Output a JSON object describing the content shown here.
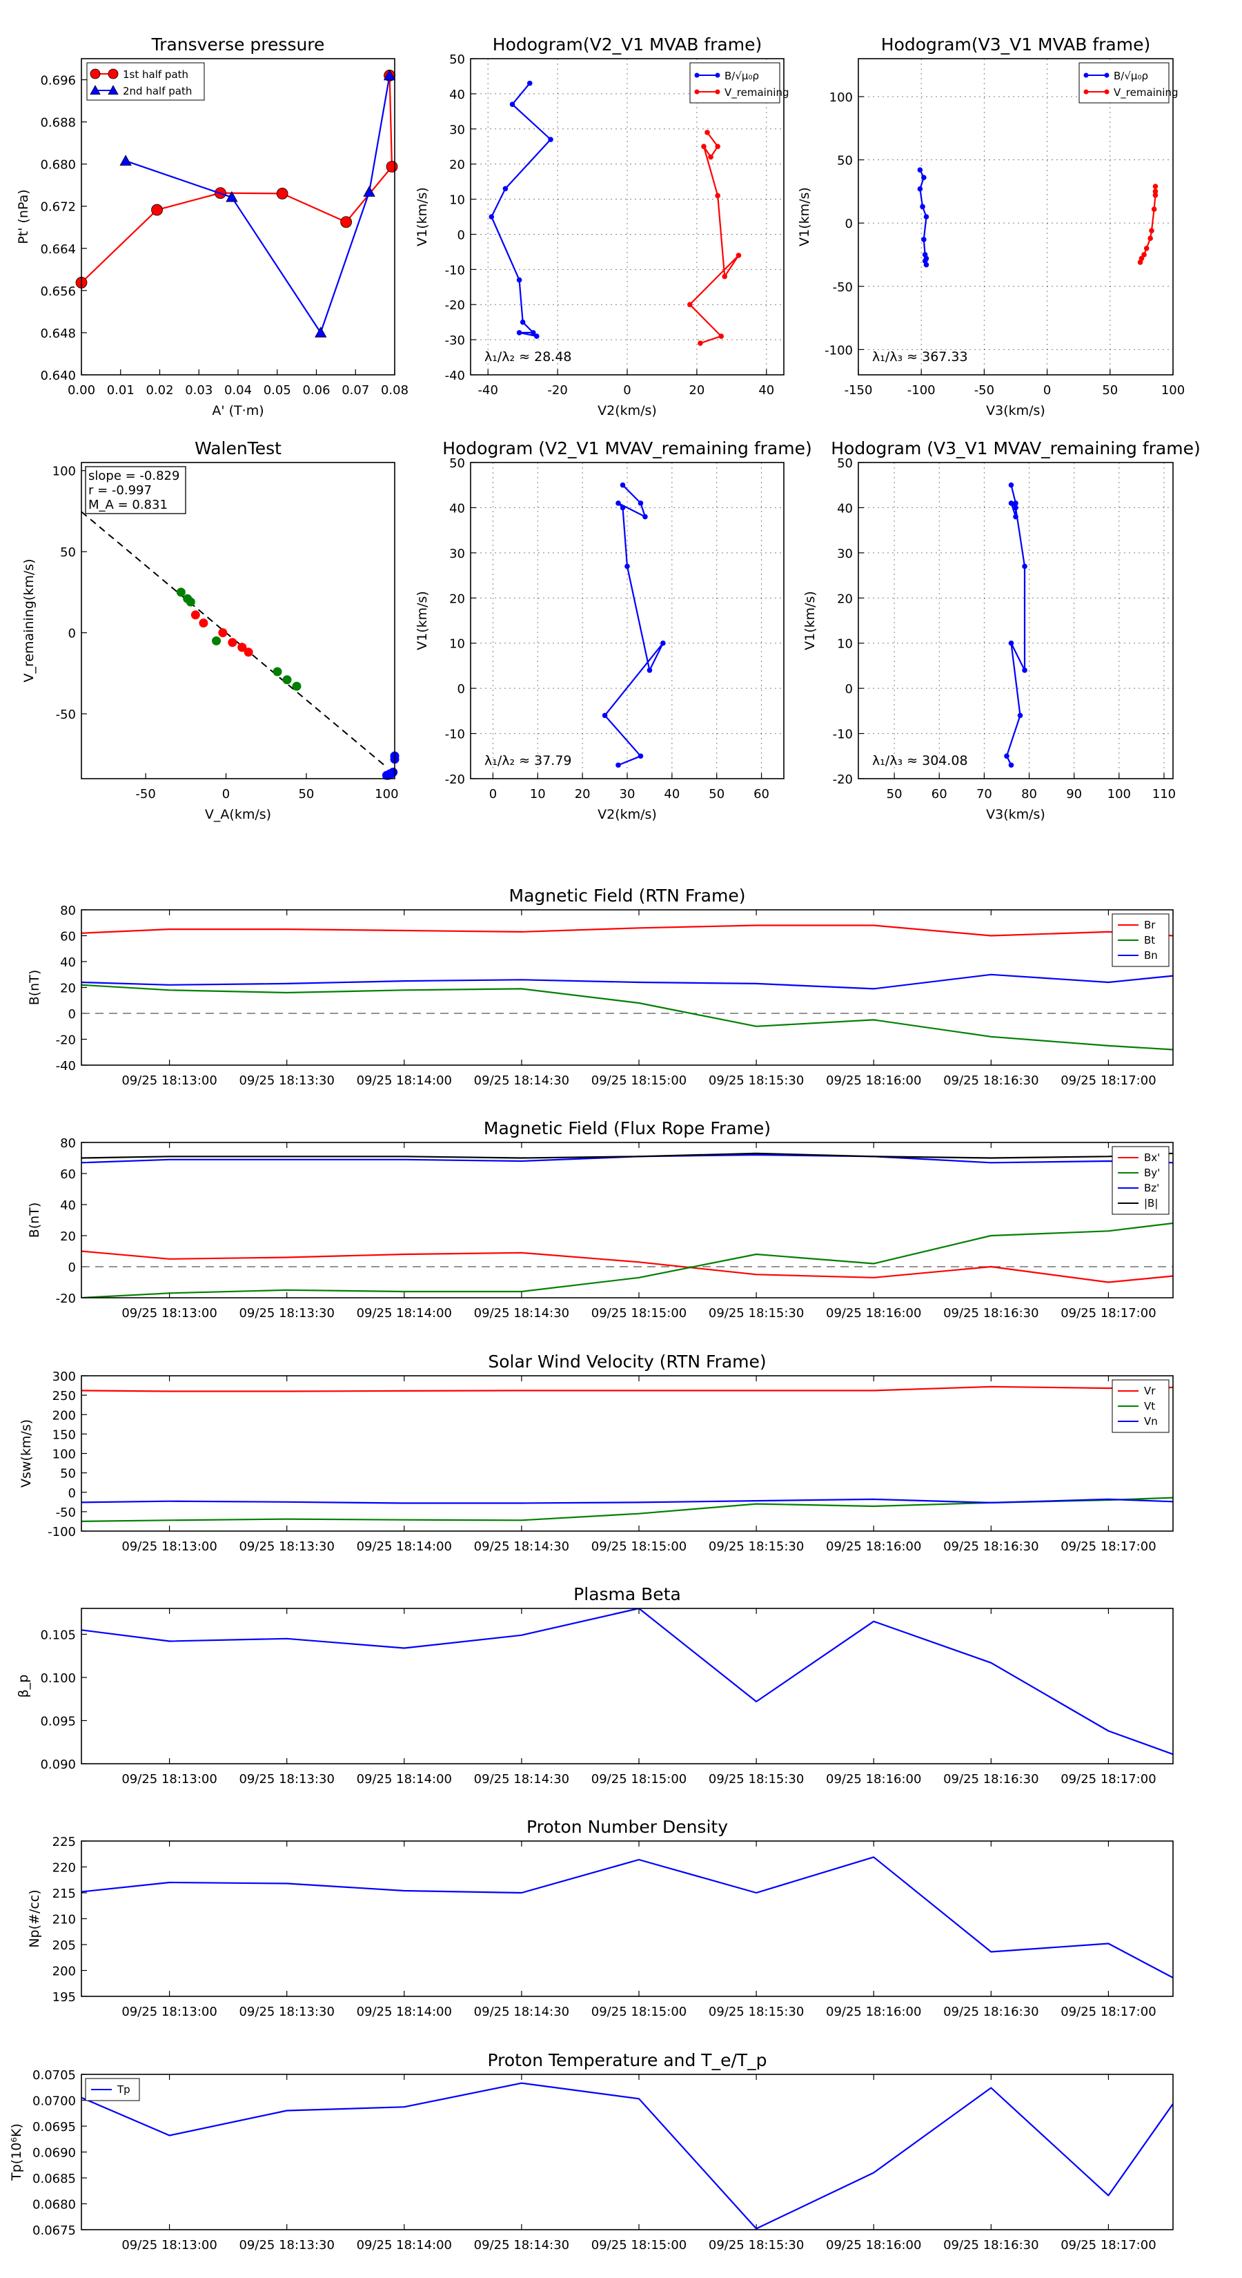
{
  "chart_data": [
    {
      "id": "tp",
      "type": "line",
      "title": "Transverse pressure",
      "xlabel": "A' (T·m)",
      "ylabel": "Pt' (nPa)",
      "xlim": [
        0,
        0.08
      ],
      "ylim": [
        0.64,
        0.7
      ],
      "xticks": [
        0,
        0.01,
        0.02,
        0.03,
        0.04,
        0.05,
        0.06,
        0.07,
        0.08
      ],
      "xticklabels": [
        "0.00",
        "0.01",
        "0.02",
        "0.03",
        "0.04",
        "0.05",
        "0.06",
        "0.07",
        "0.08"
      ],
      "yticks": [
        0.64,
        0.648,
        0.656,
        0.664,
        0.672,
        0.68,
        0.688,
        0.696
      ],
      "yticklabels": [
        "0.640",
        "0.648",
        "0.656",
        "0.664",
        "0.672",
        "0.680",
        "0.688",
        "0.696"
      ],
      "legend_position": "top-left",
      "series": [
        {
          "name": "1st half path",
          "color": "#ff0000",
          "marker": "circle",
          "x": [
            0.0,
            0.0193,
            0.0355,
            0.0513,
            0.0676,
            0.0793,
            0.0787
          ],
          "y": [
            0.6575,
            0.6713,
            0.6745,
            0.6744,
            0.669,
            0.6795,
            0.6968
          ]
        },
        {
          "name": "2nd half path",
          "color": "#0000ff",
          "marker": "triangle",
          "x": [
            0.0787,
            0.0735,
            0.0611,
            0.0384,
            0.0113
          ],
          "y": [
            0.6968,
            0.6747,
            0.648,
            0.6737,
            0.6806
          ]
        }
      ]
    },
    {
      "id": "hv2b",
      "type": "line",
      "title": "Hodogram(V2_V1 MVAB frame)",
      "xlabel": "V2(km/s)",
      "ylabel": "V1(km/s)",
      "xlim": [
        -45,
        45
      ],
      "ylim": [
        -40,
        50
      ],
      "xticks": [
        -40,
        -20,
        0,
        20,
        40
      ],
      "yticks": [
        -40,
        -30,
        -20,
        -10,
        0,
        10,
        20,
        30,
        40,
        50
      ],
      "annotation": "λ₁/λ₂ ≈ 28.48",
      "legend_position": "top-right",
      "series": [
        {
          "name": "B/√μ₀ρ",
          "color": "#0000ff",
          "x": [
            -28,
            -33,
            -22,
            -35,
            -39,
            -31,
            -30,
            -27,
            -31,
            -26
          ],
          "y": [
            43,
            37,
            27,
            13,
            5,
            -13,
            -25,
            -28,
            -28,
            -29
          ]
        },
        {
          "name": "V_remaining",
          "color": "#ff0000",
          "x": [
            23,
            26,
            24,
            22,
            26,
            28,
            32,
            18,
            27,
            21
          ],
          "y": [
            29,
            25,
            22,
            25,
            11,
            -12,
            -6,
            -20,
            -29,
            -31
          ]
        }
      ]
    },
    {
      "id": "hv3b",
      "type": "line",
      "title": "Hodogram(V3_V1 MVAB frame)",
      "xlabel": "V3(km/s)",
      "ylabel": "V1(km/s)",
      "xlim": [
        -150,
        100
      ],
      "ylim": [
        -120,
        130
      ],
      "xticks": [
        -150,
        -100,
        -50,
        0,
        50,
        100
      ],
      "yticks": [
        -100,
        -50,
        0,
        50,
        100
      ],
      "annotation": "λ₁/λ₃ ≈ 367.33",
      "legend_position": "top-right",
      "series": [
        {
          "name": "B/√μ₀ρ",
          "color": "#0000ff",
          "x": [
            -101,
            -98,
            -101,
            -99,
            -96,
            -98,
            -97,
            -96,
            -97,
            -96
          ],
          "y": [
            42,
            36,
            27,
            13,
            5,
            -13,
            -25,
            -28,
            -30,
            -33
          ]
        },
        {
          "name": "V_remaining",
          "color": "#ff0000",
          "x": [
            86,
            86,
            86,
            85,
            83,
            82,
            79,
            77,
            75,
            74
          ],
          "y": [
            29,
            25,
            22,
            11,
            -6,
            -12,
            -20,
            -25,
            -28,
            -31
          ]
        }
      ]
    },
    {
      "id": "walen",
      "type": "scatter",
      "title": "WalenTest",
      "xlabel": "V_A(km/s)",
      "ylabel": "V_remaining(km/s)",
      "xlim": [
        -90,
        105
      ],
      "ylim": [
        -90,
        105
      ],
      "xticks": [
        -50,
        0,
        50,
        100
      ],
      "yticks": [
        -50,
        0,
        50,
        100
      ],
      "stats": [
        "slope = -0.829",
        "r = -0.997",
        "M_A = 0.831"
      ],
      "fit": {
        "slope": -0.829,
        "intercept": 0
      },
      "series": [
        {
          "name": "green",
          "color": "#008000",
          "x": [
            -28,
            -24,
            -22,
            -6,
            10,
            32,
            38,
            44
          ],
          "y": [
            25,
            21,
            19,
            -5,
            -9,
            -24,
            -29,
            -33
          ]
        },
        {
          "name": "red",
          "color": "#ff0000",
          "x": [
            -19,
            -14,
            -2,
            4,
            10,
            14
          ],
          "y": [
            11,
            6,
            0,
            -6,
            -9,
            -12
          ]
        },
        {
          "name": "blue",
          "color": "#0000ff",
          "x": [
            100,
            101,
            102,
            103,
            104,
            105,
            105
          ],
          "y": [
            -88,
            -88,
            -87,
            -87,
            -86,
            -78,
            -76
          ]
        }
      ]
    },
    {
      "id": "hv2r",
      "type": "line",
      "title": "Hodogram (V2_V1 MVAV_remaining frame)",
      "xlabel": "V2(km/s)",
      "ylabel": "V1(km/s)",
      "xlim": [
        -5,
        65
      ],
      "ylim": [
        -20,
        50
      ],
      "xticks": [
        0,
        10,
        20,
        30,
        40,
        50,
        60
      ],
      "yticks": [
        -20,
        -10,
        0,
        10,
        20,
        30,
        40,
        50
      ],
      "annotation": "λ₁/λ₂ ≈ 37.79",
      "series": [
        {
          "name": "hodogram",
          "color": "#0000ff",
          "x": [
            29,
            33,
            34,
            28,
            29,
            30,
            35,
            38,
            25,
            33,
            28
          ],
          "y": [
            45,
            41,
            38,
            41,
            40,
            27,
            4,
            10,
            -6,
            -15,
            -17
          ]
        }
      ]
    },
    {
      "id": "hv3r",
      "type": "line",
      "title": "Hodogram (V3_V1 MVAV_remaining frame)",
      "xlabel": "V3(km/s)",
      "ylabel": "V1(km/s)",
      "xlim": [
        42,
        112
      ],
      "ylim": [
        -20,
        50
      ],
      "xticks": [
        50,
        60,
        70,
        80,
        90,
        100,
        110
      ],
      "yticks": [
        -20,
        -10,
        0,
        10,
        20,
        30,
        40,
        50
      ],
      "annotation": "λ₁/λ₃ ≈ 304.08",
      "series": [
        {
          "name": "hodogram",
          "color": "#0000ff",
          "x": [
            76,
            77,
            77,
            76,
            77,
            79,
            79,
            76,
            78,
            75,
            76
          ],
          "y": [
            45,
            41,
            38,
            41,
            40,
            27,
            4,
            10,
            -6,
            -15,
            -17
          ]
        }
      ]
    },
    {
      "id": "mag_rtn",
      "type": "line",
      "title": "Magnetic Field (RTN Frame)",
      "ylabel": "B(nT)",
      "ylim": [
        -40,
        80
      ],
      "yticks": [
        -40,
        -20,
        0,
        20,
        40,
        60,
        80
      ],
      "zero_line": true,
      "legend_position": "top-right",
      "x": [
        0,
        1,
        2,
        3,
        4,
        5,
        6,
        7,
        8,
        9,
        10
      ],
      "xticklabels": [
        "09/25 18:13:00",
        "09/25 18:13:30",
        "09/25 18:14:00",
        "09/25 18:14:30",
        "09/25 18:15:00",
        "09/25 18:15:30",
        "09/25 18:16:00",
        "09/25 18:16:30",
        "09/25 18:17:00"
      ],
      "series": [
        {
          "name": "Br",
          "color": "#ff0000",
          "values": [
            62,
            65,
            65,
            64,
            63,
            66,
            68,
            68,
            60,
            63,
            60
          ]
        },
        {
          "name": "Bt",
          "color": "#008000",
          "values": [
            22,
            18,
            16,
            18,
            19,
            8,
            -10,
            -5,
            -18,
            -25,
            -28
          ]
        },
        {
          "name": "Bn",
          "color": "#0000ff",
          "values": [
            24,
            22,
            23,
            25,
            26,
            24,
            23,
            19,
            30,
            24,
            29
          ]
        }
      ]
    },
    {
      "id": "mag_fr",
      "type": "line",
      "title": "Magnetic Field (Flux Rope Frame)",
      "ylabel": "B(nT)",
      "ylim": [
        -20,
        80
      ],
      "yticks": [
        -20,
        0,
        20,
        40,
        60,
        80
      ],
      "zero_line": true,
      "legend_position": "top-right",
      "x": [
        0,
        1,
        2,
        3,
        4,
        5,
        6,
        7,
        8,
        9,
        10
      ],
      "xticklabels": [
        "09/25 18:13:00",
        "09/25 18:13:30",
        "09/25 18:14:00",
        "09/25 18:14:30",
        "09/25 18:15:00",
        "09/25 18:15:30",
        "09/25 18:16:00",
        "09/25 18:16:30",
        "09/25 18:17:00"
      ],
      "series": [
        {
          "name": "Bx'",
          "color": "#ff0000",
          "values": [
            10,
            5,
            6,
            8,
            9,
            3,
            -5,
            -7,
            0,
            -10,
            -6
          ]
        },
        {
          "name": "By'",
          "color": "#008000",
          "values": [
            -20,
            -17,
            -15,
            -16,
            -16,
            -7,
            8,
            2,
            20,
            23,
            28
          ]
        },
        {
          "name": "Bz'",
          "color": "#0000ff",
          "values": [
            67,
            69,
            69,
            69,
            68,
            71,
            72,
            71,
            67,
            68,
            67
          ]
        },
        {
          "name": "|B|",
          "color": "#000000",
          "values": [
            70,
            71,
            71,
            71,
            70,
            71,
            73,
            71,
            70,
            71,
            73
          ]
        }
      ]
    },
    {
      "id": "vsw",
      "type": "line",
      "title": "Solar Wind Velocity (RTN Frame)",
      "ylabel": "Vsw(km/s)",
      "ylim": [
        -100,
        300
      ],
      "yticks": [
        -100,
        -50,
        0,
        50,
        100,
        150,
        200,
        250,
        300
      ],
      "legend_position": "top-right",
      "x": [
        0,
        1,
        2,
        3,
        4,
        5,
        6,
        7,
        8,
        9,
        10
      ],
      "xticklabels": [
        "09/25 18:13:00",
        "09/25 18:13:30",
        "09/25 18:14:00",
        "09/25 18:14:30",
        "09/25 18:15:00",
        "09/25 18:15:30",
        "09/25 18:16:00",
        "09/25 18:16:30",
        "09/25 18:17:00"
      ],
      "series": [
        {
          "name": "Vr",
          "color": "#ff0000",
          "values": [
            262,
            260,
            260,
            261,
            262,
            262,
            262,
            262,
            272,
            268,
            270
          ]
        },
        {
          "name": "Vt",
          "color": "#008000",
          "values": [
            -75,
            -72,
            -69,
            -71,
            -72,
            -55,
            -30,
            -36,
            -27,
            -20,
            -14
          ]
        },
        {
          "name": "Vn",
          "color": "#0000ff",
          "values": [
            -26,
            -23,
            -25,
            -28,
            -28,
            -26,
            -22,
            -18,
            -27,
            -18,
            -24
          ]
        }
      ]
    },
    {
      "id": "beta",
      "type": "line",
      "title": "Plasma Beta",
      "ylabel": "β_p",
      "ylim": [
        0.09,
        0.108
      ],
      "yticks": [
        0.09,
        0.095,
        0.1,
        0.105
      ],
      "yticklabels": [
        "0.090",
        "0.095",
        "0.100",
        "0.105"
      ],
      "x": [
        0,
        1,
        2,
        3,
        4,
        5,
        6,
        7,
        8,
        9,
        10
      ],
      "xticklabels": [
        "09/25 18:13:00",
        "09/25 18:13:30",
        "09/25 18:14:00",
        "09/25 18:14:30",
        "09/25 18:15:00",
        "09/25 18:15:30",
        "09/25 18:16:00",
        "09/25 18:16:30",
        "09/25 18:17:00"
      ],
      "series": [
        {
          "name": "beta",
          "color": "#0000ff",
          "values": [
            0.1055,
            0.1042,
            0.1045,
            0.1034,
            0.1049,
            0.108,
            0.0972,
            0.1065,
            0.1017,
            0.0938,
            0.0911
          ]
        }
      ]
    },
    {
      "id": "np",
      "type": "line",
      "title": "Proton Number Density",
      "ylabel": "Np(#/cc)",
      "ylim": [
        195,
        225
      ],
      "yticks": [
        195,
        200,
        205,
        210,
        215,
        220,
        225
      ],
      "x": [
        0,
        1,
        2,
        3,
        4,
        5,
        6,
        7,
        8,
        9,
        10
      ],
      "xticklabels": [
        "09/25 18:13:00",
        "09/25 18:13:30",
        "09/25 18:14:00",
        "09/25 18:14:30",
        "09/25 18:15:00",
        "09/25 18:15:30",
        "09/25 18:16:00",
        "09/25 18:16:30",
        "09/25 18:17:00"
      ],
      "series": [
        {
          "name": "Np",
          "color": "#0000ff",
          "values": [
            215.2,
            217.0,
            216.8,
            215.4,
            215.0,
            221.4,
            215.0,
            221.9,
            203.6,
            205.2,
            198.6
          ]
        }
      ]
    },
    {
      "id": "tp_temp",
      "type": "line",
      "title": "Proton Temperature and T_e/T_p",
      "ylabel": "Tp(10⁶K)",
      "ylim": [
        0.0675,
        0.0705
      ],
      "yticks": [
        0.0675,
        0.068,
        0.0685,
        0.069,
        0.0695,
        0.07,
        0.0705
      ],
      "yticklabels": [
        "0.0675",
        "0.0680",
        "0.0685",
        "0.0690",
        "0.0695",
        "0.0700",
        "0.0705"
      ],
      "legend_position": "top-left",
      "x": [
        0,
        1,
        2,
        3,
        4,
        5,
        6,
        7,
        8,
        9,
        10
      ],
      "xticklabels": [
        "09/25 18:13:00",
        "09/25 18:13:30",
        "09/25 18:14:00",
        "09/25 18:14:30",
        "09/25 18:15:00",
        "09/25 18:15:30",
        "09/25 18:16:00",
        "09/25 18:16:30",
        "09/25 18:17:00"
      ],
      "series": [
        {
          "name": "Tp",
          "color": "#0000ff",
          "values": [
            0.07005,
            0.06932,
            0.0698,
            0.06987,
            0.07033,
            0.07003,
            0.06752,
            0.0686,
            0.07024,
            0.06816,
            0.06993
          ]
        }
      ]
    }
  ]
}
